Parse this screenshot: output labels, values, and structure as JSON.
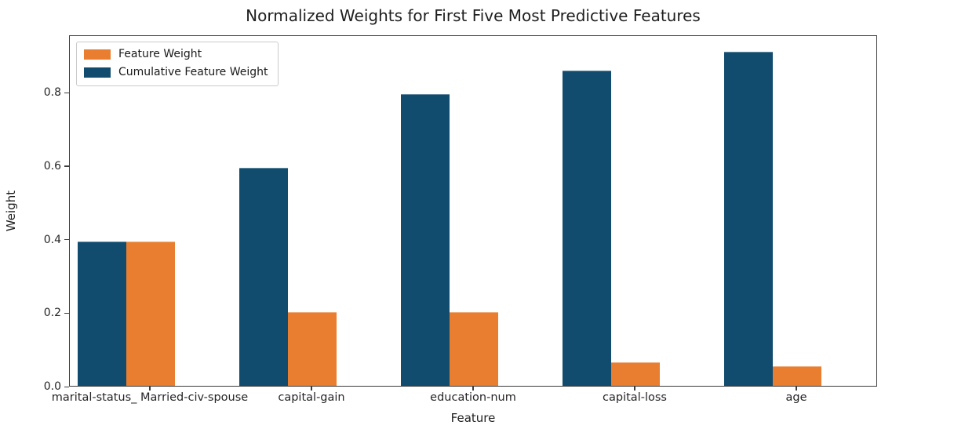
{
  "figure": {
    "background": "#ffffff",
    "spine_color": "#3c3c3c",
    "text_color": "#262626"
  },
  "chart_data": {
    "type": "bar",
    "title": "Normalized Weights for First Five Most Predictive Features",
    "xlabel": "Feature",
    "ylabel": "Weight",
    "categories": [
      "marital-status_ Married-civ-spouse",
      "capital-gain",
      "education-num",
      "capital-loss",
      "age"
    ],
    "series": [
      {
        "name": "Feature Weight",
        "color": "#E97E30",
        "values": [
          0.393,
          0.2,
          0.2,
          0.064,
          0.053
        ]
      },
      {
        "name": "Cumulative Feature Weight",
        "color": "#114C6E",
        "values": [
          0.393,
          0.593,
          0.793,
          0.857,
          0.91
        ]
      }
    ],
    "ylim": [
      0,
      0.956
    ],
    "yticks": [
      0.0,
      0.2,
      0.4,
      0.6,
      0.8
    ],
    "ytick_labels": [
      "0.0",
      "0.2",
      "0.4",
      "0.6",
      "0.8"
    ],
    "grid": false,
    "legend_position": "upper left",
    "legend_entries": [
      "Feature Weight",
      "Cumulative Feature Weight"
    ]
  }
}
